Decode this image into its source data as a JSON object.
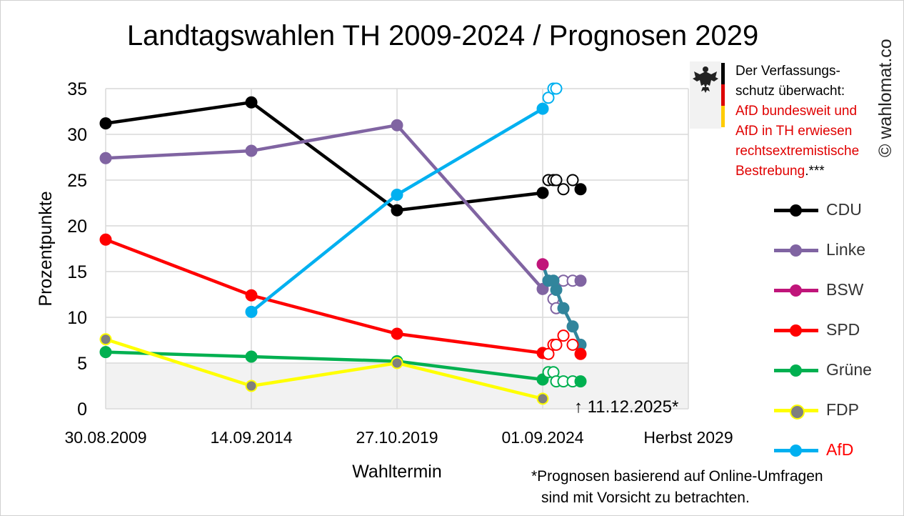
{
  "title": "Landtagswahlen TH 2009-2024 / Prognosen 2029",
  "copyright": "© wahlomat.co",
  "notice": {
    "line1": "Der Verfassungs-",
    "line2": "schutz überwacht:",
    "line3": "AfD bundesweit und",
    "line4": "AfD in TH erwiesen",
    "line5": "rechtsextremistische",
    "line6": "Bestrebung",
    "line6_suffix": ".***",
    "flag_colors": [
      "#000000",
      "#dd0000",
      "#ffcc00"
    ]
  },
  "date_note": "↑ 11.12.2025*",
  "footnote": {
    "line1": "*Prognosen basierend auf Online-Umfragen",
    "line2": "sind mit Vorsicht zu betrachten."
  },
  "legend": [
    {
      "name": "CDU",
      "color": "#000000",
      "dot": "#000000",
      "text_color": "#333333"
    },
    {
      "name": "Linke",
      "color": "#8064a2",
      "dot": "#8064a2",
      "text_color": "#333333"
    },
    {
      "name": "BSW",
      "color": "#c0157a",
      "dot": "#c0157a",
      "text_color": "#333333"
    },
    {
      "name": "SPD",
      "color": "#ff0000",
      "dot": "#ff0000",
      "text_color": "#333333"
    },
    {
      "name": "Grüne",
      "color": "#00b050",
      "dot": "#00b050",
      "text_color": "#333333"
    },
    {
      "name": "FDP",
      "color": "#ffff00",
      "dot": "#7f7f7f",
      "text_color": "#333333"
    },
    {
      "name": "AfD",
      "color": "#00b0f0",
      "dot": "#00b0f0",
      "text_color": "#ff0000"
    }
  ],
  "chart_data": {
    "type": "line",
    "title": "Landtagswahlen TH 2009-2024 / Prognosen 2029",
    "xlabel": "Wahltermin",
    "ylabel": "Prozentpunkte",
    "categories": [
      "30.08.2009",
      "14.09.2014",
      "27.10.2019",
      "01.09.2024",
      "Herbst 2029"
    ],
    "ylim": [
      0,
      35
    ],
    "yticks": [
      0,
      5,
      10,
      15,
      20,
      25,
      30,
      35
    ],
    "grid": true,
    "shaded_band": [
      0,
      5
    ],
    "legend_position": "right",
    "series": [
      {
        "name": "CDU",
        "color": "#000000",
        "elections": [
          31.2,
          33.5,
          21.7,
          23.6
        ],
        "forecast": [
          25,
          25,
          25,
          24,
          25,
          24
        ]
      },
      {
        "name": "Linke",
        "color": "#8064a2",
        "elections": [
          27.4,
          28.2,
          31.0,
          13.1
        ],
        "forecast": [
          14,
          12,
          11,
          14,
          14,
          14
        ]
      },
      {
        "name": "BSW",
        "color": "#c0157a",
        "elections": [
          null,
          null,
          null,
          15.8
        ],
        "forecast": [
          14,
          14,
          13,
          11,
          9,
          7
        ]
      },
      {
        "name": "SPD",
        "color": "#ff0000",
        "elections": [
          18.5,
          12.4,
          8.2,
          6.1
        ],
        "forecast": [
          6,
          7,
          7,
          8,
          7,
          6
        ]
      },
      {
        "name": "Grüne",
        "color": "#00b050",
        "elections": [
          6.2,
          5.7,
          5.2,
          3.2
        ],
        "forecast": [
          4,
          4,
          3,
          3,
          3,
          3
        ]
      },
      {
        "name": "FDP",
        "color": "#ffff00",
        "elections": [
          7.6,
          2.5,
          5.0,
          1.1
        ],
        "forecast": []
      },
      {
        "name": "AfD",
        "color": "#00b0f0",
        "elections": [
          null,
          10.6,
          23.4,
          32.8
        ],
        "forecast": [
          34,
          35,
          35
        ]
      }
    ]
  }
}
